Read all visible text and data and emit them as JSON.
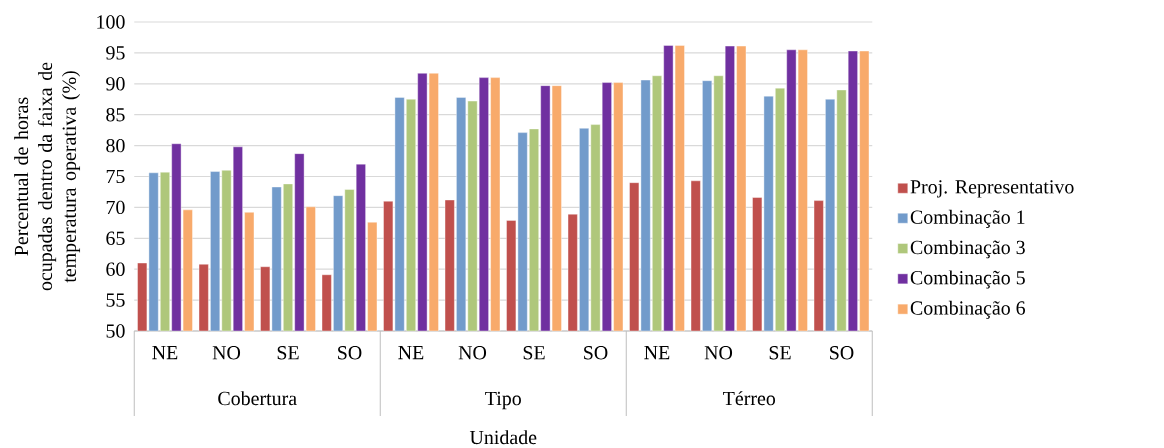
{
  "chart_data": {
    "type": "bar",
    "xlabel": "Unidade",
    "ylabel": "Percentual de horas ocupadas dentro da faixa de temperatura operativa (%)",
    "categories": [
      "NE",
      "NO",
      "SE",
      "SO",
      "NE",
      "NO",
      "SE",
      "SO",
      "NE",
      "NO",
      "SE",
      "SO"
    ],
    "annotations": [
      "Cobertura",
      "Tipo",
      "Térreo"
    ],
    "series": [
      {
        "name": "Proj. Representativo",
        "color": "#c0504d",
        "values": [
          61,
          60.8,
          60.4,
          59.1,
          71,
          71.2,
          67.9,
          68.9,
          74,
          74.3,
          71.6,
          71.1
        ]
      },
      {
        "name": "Combinação 1",
        "color": "#729bcb",
        "values": [
          75.6,
          75.8,
          73.3,
          71.9,
          87.8,
          87.8,
          82.1,
          82.8,
          90.6,
          90.5,
          88,
          87.5
        ]
      },
      {
        "name": "Combinação 3",
        "color": "#afc77b",
        "values": [
          75.7,
          76,
          73.8,
          72.9,
          87.5,
          87.2,
          82.7,
          83.4,
          91.3,
          91.3,
          89.3,
          89
        ]
      },
      {
        "name": "Combinação 5",
        "color": "#7030a0",
        "values": [
          80.3,
          79.8,
          78.7,
          77,
          91.7,
          91,
          89.7,
          90.2,
          96.2,
          96.1,
          95.5,
          95.3
        ]
      },
      {
        "name": "Combinação 6",
        "color": "#f8aa6b",
        "values": [
          69.6,
          69.2,
          70.1,
          67.6,
          91.7,
          91,
          89.7,
          90.2,
          96.2,
          96.1,
          95.5,
          95.3
        ]
      }
    ],
    "ylim": [
      50,
      100
    ],
    "yticks": [
      50,
      55,
      60,
      65,
      70,
      75,
      80,
      85,
      90,
      95,
      100
    ],
    "grid": "y",
    "legend": "right"
  }
}
